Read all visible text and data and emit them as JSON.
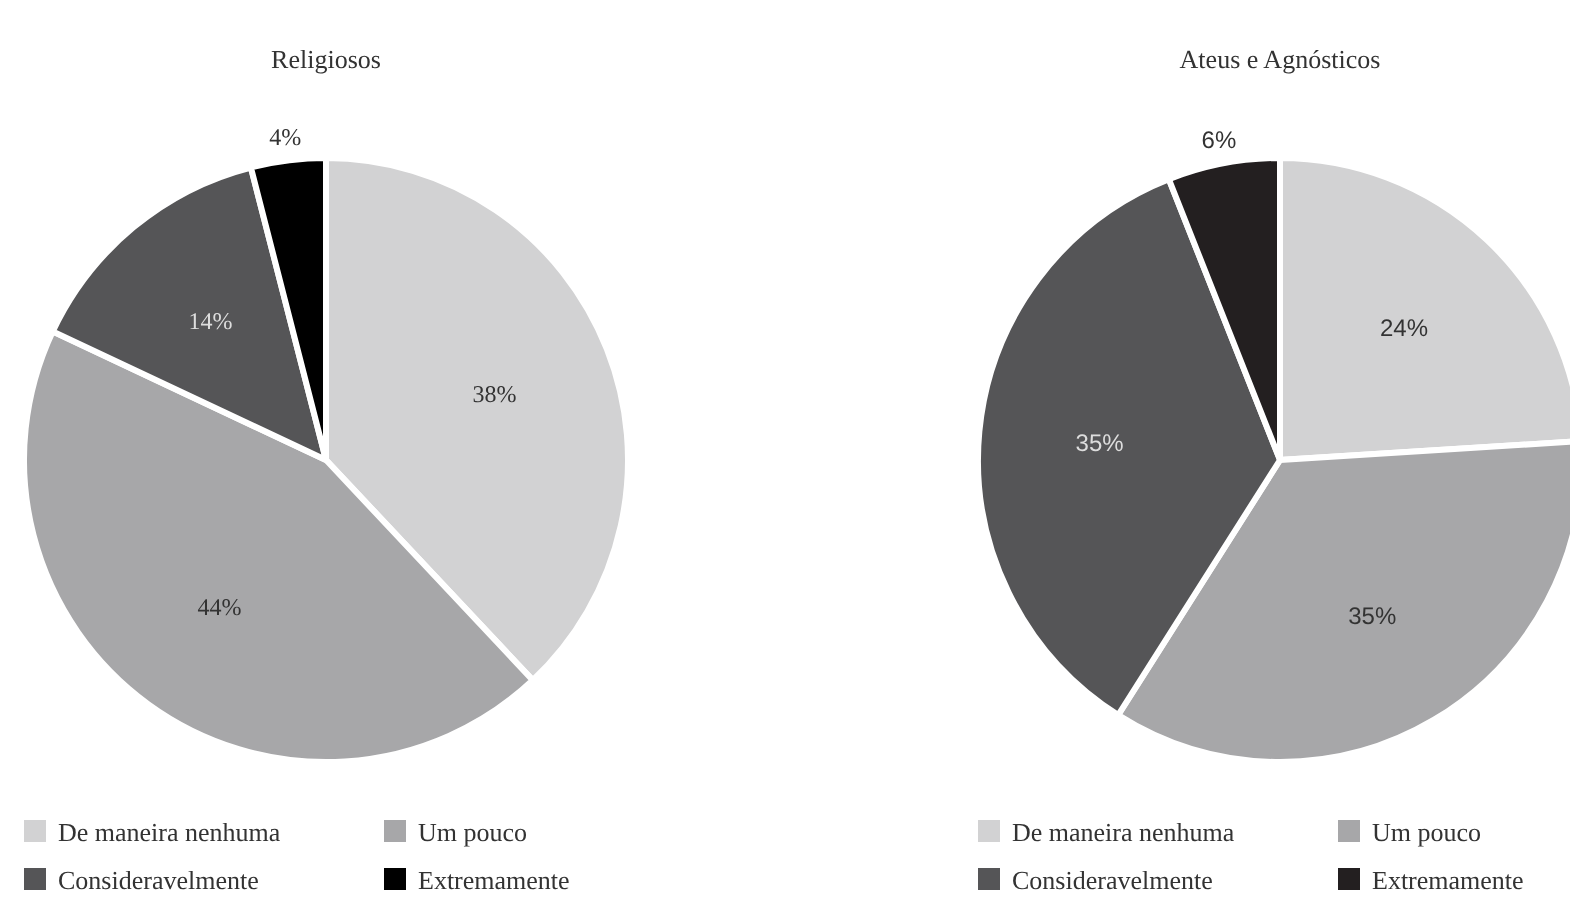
{
  "chart_data": [
    {
      "type": "pie",
      "title": "Religiosos",
      "categories": [
        "De maneira nenhuma",
        "Um pouco",
        "Consideravelmente",
        "Extremamente"
      ],
      "values": [
        38,
        44,
        14,
        4
      ],
      "value_labels": [
        "38%",
        "44%",
        "14%",
        "4%"
      ],
      "colors": [
        "#d2d2d3",
        "#a7a7a9",
        "#555557",
        "#000000"
      ],
      "legend": "bottom"
    },
    {
      "type": "pie",
      "title": "Ateus e Agnósticos",
      "categories": [
        "De maneira nenhuma",
        "Um pouco",
        "Consideravelmente",
        "Extremamente"
      ],
      "values": [
        24,
        35,
        35,
        6
      ],
      "value_labels": [
        "24%",
        "35%",
        "35%",
        "6%"
      ],
      "colors": [
        "#d2d2d3",
        "#a7a7a9",
        "#555557",
        "#231f20"
      ],
      "legend": "bottom"
    }
  ]
}
